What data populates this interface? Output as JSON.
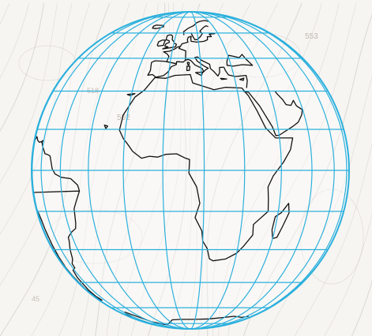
{
  "map": {
    "projection": "orthographic",
    "center_lon": 10,
    "center_lat": 0,
    "graticule_lon_step_deg": 15,
    "graticule_lat_step_deg": 15
  },
  "colors": {
    "graticule": "#2bb0dd",
    "coastline": "#111111",
    "background_contours": "#c9c4bd",
    "background": "#f7f5f2"
  },
  "background": {
    "type": "faint weather-map isobar contours",
    "labels": [
      "502",
      "518",
      "553",
      "45"
    ]
  },
  "coastlines": {
    "africa": [
      [
        -17.5,
        14.7
      ],
      [
        -16.8,
        20.5
      ],
      [
        -13.2,
        27.5
      ],
      [
        -9.6,
        30.4
      ],
      [
        -6,
        35.8
      ],
      [
        -1,
        35.5
      ],
      [
        3,
        36.8
      ],
      [
        10,
        37.2
      ],
      [
        11,
        33.5
      ],
      [
        15,
        32.2
      ],
      [
        20,
        30.6
      ],
      [
        25,
        31.6
      ],
      [
        32.3,
        31.3
      ],
      [
        34.5,
        28
      ],
      [
        37,
        22
      ],
      [
        39.5,
        15.5
      ],
      [
        43.3,
        11.8
      ],
      [
        51.2,
        11.8
      ],
      [
        49.5,
        7.5
      ],
      [
        46,
        3
      ],
      [
        41.5,
        -2
      ],
      [
        39.5,
        -6
      ],
      [
        40,
        -10.5
      ],
      [
        40.5,
        -15
      ],
      [
        35,
        -20
      ],
      [
        35.5,
        -24
      ],
      [
        32.5,
        -28.5
      ],
      [
        30,
        -31.5
      ],
      [
        25.5,
        -34
      ],
      [
        20,
        -34.8
      ],
      [
        18.3,
        -33.9
      ],
      [
        17,
        -29.5
      ],
      [
        15,
        -26.5
      ],
      [
        14.5,
        -22.5
      ],
      [
        11.8,
        -17.3
      ],
      [
        13.5,
        -12
      ],
      [
        12.3,
        -6
      ],
      [
        9.5,
        -1
      ],
      [
        9.7,
        3.9
      ],
      [
        8,
        4.5
      ],
      [
        5,
        6
      ],
      [
        1,
        5.8
      ],
      [
        -2,
        4.8
      ],
      [
        -5,
        5.1
      ],
      [
        -8,
        4.4
      ],
      [
        -11.5,
        6.9
      ],
      [
        -13.6,
        9.5
      ],
      [
        -15.5,
        11.5
      ],
      [
        -17.5,
        14.7
      ]
    ],
    "madagascar": [
      [
        49.3,
        -12
      ],
      [
        50.2,
        -15.5
      ],
      [
        49.5,
        -17.5
      ],
      [
        48.3,
        -21
      ],
      [
        47,
        -25
      ],
      [
        45,
        -25.5
      ],
      [
        43.7,
        -22
      ],
      [
        44,
        -17
      ],
      [
        46.5,
        -15.5
      ],
      [
        49.3,
        -12
      ]
    ],
    "south_america": [
      [
        -34.8,
        -7.5
      ],
      [
        -35.5,
        -5.3
      ],
      [
        -39,
        -3
      ],
      [
        -44.5,
        -2.5
      ],
      [
        -48.5,
        -1.3
      ],
      [
        -50.5,
        0.5
      ],
      [
        -52.5,
        5.2
      ],
      [
        -55,
        5.8
      ],
      [
        -57,
        6
      ],
      [
        -60,
        8.5
      ],
      [
        -62,
        10.5
      ],
      [
        -65,
        10.2
      ],
      [
        -68,
        10.8
      ],
      [
        -71.5,
        12.3
      ],
      [
        -75,
        11
      ],
      [
        -77.5,
        8.5
      ],
      [
        -79.5,
        9
      ],
      [
        -80,
        8
      ],
      [
        -79.5,
        1
      ],
      [
        -80.5,
        -2.5
      ],
      [
        -81.2,
        -5.5
      ],
      [
        -79,
        -8
      ],
      [
        -76.2,
        -14
      ],
      [
        -71,
        -18
      ],
      [
        -70.3,
        -22
      ],
      [
        -70.5,
        -28
      ],
      [
        -71.5,
        -33
      ],
      [
        -73.5,
        -38
      ],
      [
        -73.5,
        -42
      ],
      [
        -74.5,
        -48
      ],
      [
        -74,
        -53
      ],
      [
        -69,
        -55
      ],
      [
        -66,
        -55
      ],
      [
        -68.5,
        -52.5
      ],
      [
        -68,
        -49
      ],
      [
        -66,
        -46.5
      ],
      [
        -65,
        -42.5
      ],
      [
        -62,
        -39
      ],
      [
        -57.5,
        -38
      ],
      [
        -57,
        -36
      ],
      [
        -53.5,
        -34
      ],
      [
        -51,
        -30
      ],
      [
        -48.5,
        -26.5
      ],
      [
        -48,
        -25
      ],
      [
        -44.5,
        -23
      ],
      [
        -41,
        -21.5
      ],
      [
        -40,
        -19.5
      ],
      [
        -39,
        -14
      ],
      [
        -37,
        -11
      ],
      [
        -34.8,
        -7.5
      ]
    ],
    "iberia": [
      [
        -9.6,
        36.9
      ],
      [
        -8.9,
        39
      ],
      [
        -9.5,
        42.9
      ],
      [
        -8,
        43.7
      ],
      [
        -3.5,
        43.5
      ],
      [
        -1.8,
        43.3
      ],
      [
        3.2,
        42.3
      ],
      [
        3.2,
        41.9
      ],
      [
        0.8,
        40.8
      ],
      [
        0,
        39
      ],
      [
        -0.5,
        38.2
      ],
      [
        -2.2,
        36.7
      ],
      [
        -5.6,
        36
      ],
      [
        -7.4,
        37.2
      ],
      [
        -9.6,
        36.9
      ]
    ],
    "france": [
      [
        -1.8,
        43.3
      ],
      [
        -1.2,
        46
      ],
      [
        -2.5,
        47.3
      ],
      [
        -4.7,
        48.4
      ],
      [
        -1.6,
        48.7
      ],
      [
        1.6,
        50.2
      ],
      [
        2.6,
        51.1
      ],
      [
        4.2,
        51.4
      ],
      [
        3.5,
        50.3
      ],
      [
        7.5,
        48.9
      ],
      [
        7.5,
        44
      ],
      [
        6.5,
        43.1
      ],
      [
        3.2,
        43.3
      ],
      [
        3.2,
        42.3
      ],
      [
        -1.8,
        43.3
      ]
    ],
    "italy": [
      [
        7.5,
        44
      ],
      [
        8.8,
        44.4
      ],
      [
        10.2,
        43.9
      ],
      [
        12.2,
        41.7
      ],
      [
        15.6,
        40
      ],
      [
        16.1,
        38.8
      ],
      [
        15.6,
        38
      ],
      [
        17.2,
        39.4
      ],
      [
        18.5,
        40.1
      ],
      [
        16.5,
        41.2
      ],
      [
        13.5,
        43.5
      ],
      [
        12.3,
        45.4
      ],
      [
        13.8,
        45.7
      ]
    ],
    "balkans": [
      [
        13.8,
        45.7
      ],
      [
        15.5,
        44
      ],
      [
        17.5,
        43
      ],
      [
        19.4,
        42
      ],
      [
        19.5,
        40
      ],
      [
        21,
        38.5
      ],
      [
        22.5,
        36.5
      ],
      [
        23.5,
        38
      ],
      [
        24,
        40.5
      ],
      [
        26.2,
        40.6
      ]
    ],
    "britain": [
      [
        -5.7,
        50
      ],
      [
        -3,
        51.2
      ],
      [
        -5,
        51.6
      ],
      [
        -4.8,
        53
      ],
      [
        -3,
        53.8
      ],
      [
        -3.4,
        54.9
      ],
      [
        -5.6,
        55.5
      ],
      [
        -6,
        58
      ],
      [
        -5,
        58.6
      ],
      [
        -3,
        58.6
      ],
      [
        -2,
        57.6
      ],
      [
        -1.7,
        55.6
      ],
      [
        0,
        54
      ],
      [
        0.2,
        53.3
      ],
      [
        1.7,
        52.7
      ],
      [
        1.4,
        51.2
      ],
      [
        -0.5,
        50.8
      ],
      [
        -5.7,
        50
      ]
    ],
    "ireland": [
      [
        -6,
        52.1
      ],
      [
        -6.1,
        54.1
      ],
      [
        -5.9,
        55.2
      ],
      [
        -8.2,
        55.2
      ],
      [
        -10,
        54.2
      ],
      [
        -9.8,
        52.1
      ],
      [
        -9,
        51.6
      ],
      [
        -6,
        52.1
      ]
    ],
    "scandinavia": [
      [
        5.5,
        58.5
      ],
      [
        5,
        61
      ],
      [
        8,
        63.5
      ],
      [
        13,
        66
      ],
      [
        16,
        68.5
      ],
      [
        20,
        70
      ],
      [
        26,
        71
      ],
      [
        30,
        70
      ]
    ],
    "sweden_baltic": [
      [
        10.6,
        59.9
      ],
      [
        11.5,
        58
      ],
      [
        12.8,
        55.6
      ],
      [
        14.3,
        55.6
      ],
      [
        16.5,
        57.3
      ],
      [
        18.5,
        59.5
      ],
      [
        17.2,
        61.5
      ],
      [
        21.2,
        64.5
      ],
      [
        24,
        65.8
      ],
      [
        25.5,
        65
      ]
    ],
    "jutland_germany": [
      [
        4.2,
        51.4
      ],
      [
        5,
        53
      ],
      [
        7,
        53.5
      ],
      [
        8.5,
        54
      ],
      [
        8.1,
        55.5
      ],
      [
        8.6,
        57.1
      ],
      [
        10.6,
        57.7
      ],
      [
        10.3,
        56.3
      ],
      [
        10.5,
        54.5
      ],
      [
        14,
        54
      ],
      [
        18.5,
        54.5
      ],
      [
        21,
        55.5
      ],
      [
        21.5,
        57.5
      ],
      [
        24.3,
        57.5
      ],
      [
        23.5,
        59.2
      ],
      [
        28,
        59.6
      ]
    ],
    "black_sea": [
      [
        28,
        41.5
      ],
      [
        28.5,
        43.5
      ],
      [
        30.5,
        46.5
      ],
      [
        33,
        46
      ],
      [
        36,
        45.3
      ],
      [
        38.5,
        47
      ],
      [
        39.5,
        44.5
      ],
      [
        41.5,
        41.5
      ],
      [
        36,
        41.8
      ],
      [
        31,
        41.1
      ],
      [
        28,
        41.5
      ]
    ],
    "anatolia_levant": [
      [
        26.2,
        40.6
      ],
      [
        26.5,
        39
      ],
      [
        27.5,
        37
      ],
      [
        30.5,
        36.3
      ],
      [
        36,
        36.8
      ],
      [
        35.8,
        34.5
      ],
      [
        34.5,
        31.3
      ]
    ],
    "red_sea_arabia": [
      [
        32.6,
        29.9
      ],
      [
        34.9,
        29.5
      ],
      [
        38.5,
        24
      ],
      [
        42.5,
        16
      ],
      [
        43.5,
        12.7
      ],
      [
        45,
        12.8
      ],
      [
        52,
        16
      ],
      [
        55.5,
        17.7
      ],
      [
        58.5,
        20.5
      ],
      [
        59.8,
        22.5
      ],
      [
        57,
        24
      ],
      [
        56.3,
        26.2
      ],
      [
        54,
        24.2
      ],
      [
        51.5,
        24.5
      ],
      [
        50.5,
        26.5
      ],
      [
        48.5,
        29
      ],
      [
        48,
        30
      ]
    ],
    "sicily": [
      [
        12.4,
        38.1
      ],
      [
        15.6,
        38.3
      ],
      [
        15.1,
        36.7
      ],
      [
        12.4,
        38.1
      ]
    ],
    "sardinia": [
      [
        8.4,
        41.1
      ],
      [
        9.8,
        41
      ],
      [
        9.6,
        39.1
      ],
      [
        8.4,
        39
      ],
      [
        8.4,
        41.1
      ]
    ],
    "corsica": [
      [
        8.6,
        43
      ],
      [
        9.5,
        42.8
      ],
      [
        9.2,
        41.4
      ],
      [
        8.6,
        42.2
      ],
      [
        8.6,
        43
      ]
    ],
    "crete": [
      [
        23.5,
        35.5
      ],
      [
        26.3,
        35.2
      ],
      [
        24,
        35.0
      ],
      [
        23.5,
        35.5
      ]
    ],
    "cyprus": [
      [
        32.3,
        35
      ],
      [
        34.5,
        35.6
      ],
      [
        33.9,
        34.6
      ],
      [
        32.3,
        35
      ]
    ],
    "iceland": [
      [
        -24,
        65.5
      ],
      [
        -22,
        66.4
      ],
      [
        -18,
        66.2
      ],
      [
        -14.5,
        66.2
      ],
      [
        -13.5,
        65
      ],
      [
        -15,
        64.2
      ],
      [
        -18.7,
        63.4
      ],
      [
        -22.7,
        63.8
      ],
      [
        -24,
        65.5
      ]
    ],
    "cape_verde": [
      [
        -24.4,
        16.6
      ],
      [
        -23.5,
        15.3
      ],
      [
        -22.8,
        16.2
      ],
      [
        -24.4,
        16.6
      ]
    ],
    "canary": [
      [
        -16.9,
        28.6
      ],
      [
        -15.4,
        28.1
      ],
      [
        -13.5,
        29
      ],
      [
        -16.9,
        28.6
      ]
    ],
    "trinidad": [
      [
        -61.9,
        10.1
      ],
      [
        -61,
        10.8
      ],
      [
        -61.5,
        10.8
      ],
      [
        -61.9,
        10.1
      ]
    ],
    "antarctica": [
      [
        -70,
        -68
      ],
      [
        -60,
        -64
      ],
      [
        -57,
        -63.4
      ],
      [
        -45,
        -73
      ],
      [
        -30,
        -77
      ],
      [
        -10,
        -70.5
      ],
      [
        0,
        -70
      ],
      [
        15,
        -70
      ],
      [
        30,
        -69.5
      ],
      [
        45,
        -68
      ],
      [
        55,
        -67
      ],
      [
        70,
        -68
      ],
      [
        80,
        -67
      ]
    ]
  }
}
